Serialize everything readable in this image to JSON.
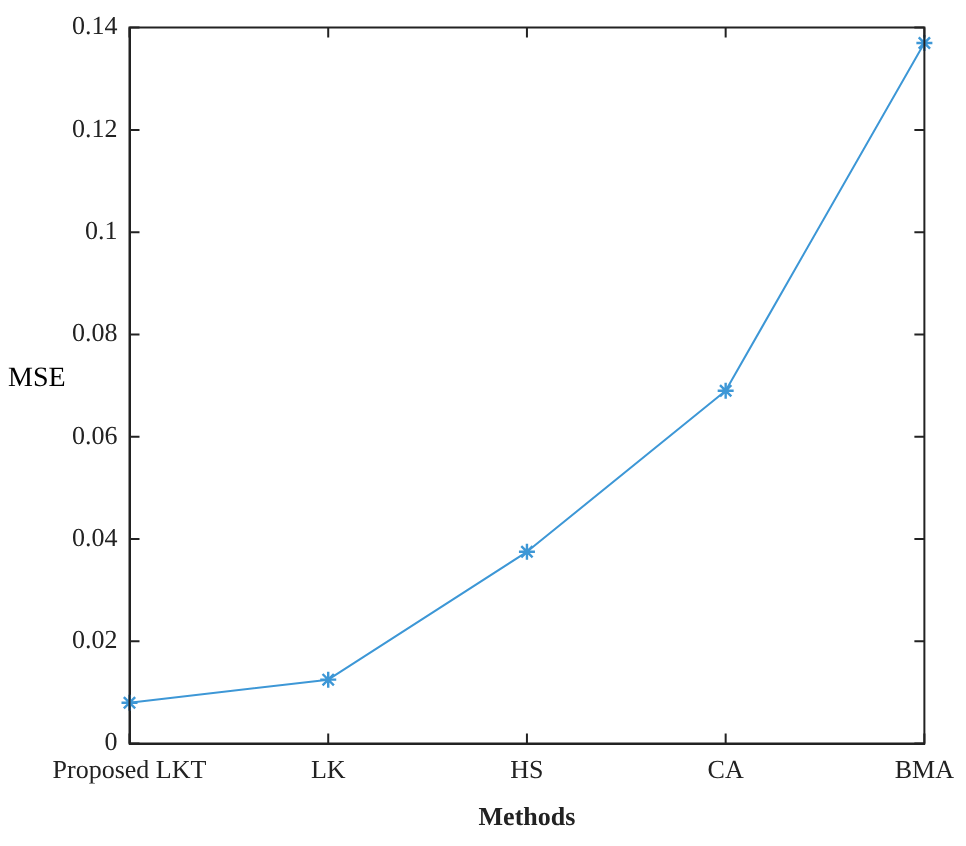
{
  "chart_data": {
    "type": "line",
    "xlabel": "Methods",
    "ylabel": "MSE",
    "categories": [
      "Proposed LKT",
      "LK",
      "HS",
      "CA",
      "BMA"
    ],
    "series": [
      {
        "color": "#3d97d6",
        "values": [
          0.008,
          0.0125,
          0.0375,
          0.069,
          0.137
        ]
      }
    ],
    "ylim": [
      0,
      0.14
    ],
    "yticks": [
      0,
      0.02,
      0.04,
      0.06,
      0.08,
      0.1,
      0.12,
      0.14
    ],
    "grid": false,
    "legend": false,
    "marker": "cross",
    "line_style": "solid"
  }
}
